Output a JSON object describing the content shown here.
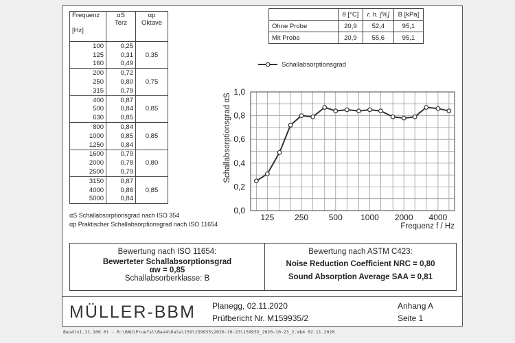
{
  "table": {
    "headers": {
      "freq": "Frequenz",
      "freq_unit": "[Hz]",
      "terz_sym": "αS",
      "terz": "Terz",
      "okt_sym": "αp",
      "okt": "Oktave"
    },
    "groups": [
      {
        "octave": "0,35",
        "rows": [
          [
            "100",
            "0,25"
          ],
          [
            "125",
            "0,31"
          ],
          [
            "160",
            "0,49"
          ]
        ]
      },
      {
        "octave": "0,75",
        "rows": [
          [
            "200",
            "0,72"
          ],
          [
            "250",
            "0,80"
          ],
          [
            "315",
            "0,79"
          ]
        ]
      },
      {
        "octave": "0,85",
        "rows": [
          [
            "400",
            "0,87"
          ],
          [
            "500",
            "0,84"
          ],
          [
            "630",
            "0,85"
          ]
        ]
      },
      {
        "octave": "0,85",
        "rows": [
          [
            "800",
            "0,84"
          ],
          [
            "1000",
            "0,85"
          ],
          [
            "1250",
            "0,84"
          ]
        ]
      },
      {
        "octave": "0,80",
        "rows": [
          [
            "1600",
            "0,79"
          ],
          [
            "2000",
            "0,78"
          ],
          [
            "2500",
            "0,79"
          ]
        ]
      },
      {
        "octave": "0,85",
        "rows": [
          [
            "3150",
            "0,87"
          ],
          [
            "4000",
            "0,86"
          ],
          [
            "5000",
            "0,84"
          ]
        ]
      }
    ],
    "note1": "αS Schallabsorptionsgrad nach ISO 354",
    "note2": "αp Praktischer Schallabsorptionsgrad nach ISO 11654"
  },
  "climate": {
    "headers": [
      "θ [°C]",
      "r. h. [%]",
      "B [kPa]"
    ],
    "rows": [
      {
        "label": "Ohne Probe",
        "values": [
          "20,9",
          "52,4",
          "95,1"
        ]
      },
      {
        "label": "Mit Probe",
        "values": [
          "20,9",
          "55,6",
          "95,1"
        ]
      }
    ]
  },
  "chart_data": {
    "type": "line",
    "legend": "Schallabsorptionsgrad",
    "legend_position": "top-left",
    "ylabel": "Schallabsorptionsgrad αS",
    "xlabel": "Frequenz f / Hz",
    "x_scale": "log",
    "xlim": [
      89,
      5600
    ],
    "ylim": [
      0,
      1.0
    ],
    "grid": true,
    "y_ticks": [
      "0,0",
      "0,2",
      "0,4",
      "0,6",
      "0,8",
      "1,0"
    ],
    "x_ticks": [
      "125",
      "250",
      "500",
      "1000",
      "2000",
      "4000"
    ],
    "x": [
      100,
      125,
      160,
      200,
      250,
      315,
      400,
      500,
      630,
      800,
      1000,
      1250,
      1600,
      2000,
      2500,
      3150,
      4000,
      5000
    ],
    "values": [
      0.25,
      0.31,
      0.49,
      0.72,
      0.8,
      0.79,
      0.87,
      0.84,
      0.85,
      0.84,
      0.85,
      0.84,
      0.79,
      0.78,
      0.79,
      0.87,
      0.86,
      0.84
    ],
    "color": "#333333"
  },
  "evaluation": {
    "left": {
      "title": "Bewertung nach ISO 11654:",
      "line1": "Bewerteter Schallabsorptionsgrad",
      "line2": "αw = 0,85",
      "line3": "Schallabsorberklasse: B"
    },
    "right": {
      "title": "Bewertung nach ASTM C423:",
      "line1": "Noise Reduction Coefficient NRC = 0,80",
      "line2": "Sound Absorption Average SAA = 0,81"
    }
  },
  "footer": {
    "logo": "MÜLLER-BBM",
    "place_date": "Planegg, 02.11.2020",
    "report": "Prüfbericht Nr. M159935/2",
    "annex": "Anhang A",
    "page": "Seite 1"
  },
  "path": "Bau4(v1.11.100.0) - R:\\BAU\\Pruefst\\Bau4\\Data\\159\\159935\\2020-10-23\\159935_2020-10-23_2.mb4 02.11.2020"
}
